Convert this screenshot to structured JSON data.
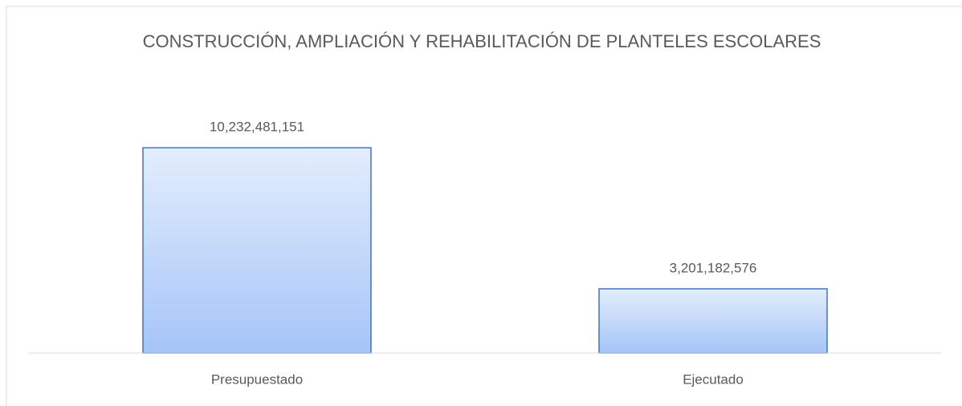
{
  "chart_data": {
    "type": "bar",
    "title": "CONSTRUCCIÓN, AMPLIACIÓN Y REHABILITACIÓN DE PLANTELES ESCOLARES",
    "categories": [
      "Presupuestado",
      "Ejecutado"
    ],
    "values": [
      10232481151,
      3201182576
    ],
    "value_labels": [
      "10,232,481,151",
      "3,201,182,576"
    ],
    "color": "#4472c4",
    "ylim": [
      0,
      12000000000
    ]
  }
}
